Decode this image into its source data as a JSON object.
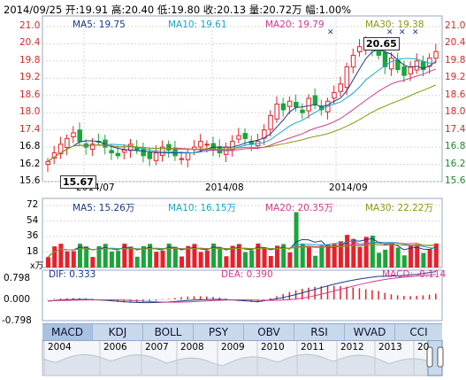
{
  "header": {
    "text": "2014/09/25 开:19.91 高:20.40 低:19.80 收:20.13 量:20.72万 幅:1.00%"
  },
  "price_panel": {
    "ma_labels": [
      {
        "label": "MA5: 19.75",
        "color": "#1a3a8a"
      },
      {
        "label": "MA10: 19.61",
        "color": "#18a6c8"
      },
      {
        "label": "MA20: 19.79",
        "color": "#d13b8c"
      },
      {
        "label": "MA30: 19.38",
        "color": "#8a9a10"
      }
    ],
    "y_ticks": [
      "21.0",
      "20.4",
      "19.8",
      "19.2",
      "18.6",
      "18.0",
      "17.4",
      "16.8",
      "16.2",
      "15.6"
    ],
    "x_ticks": [
      "2014/07",
      "2014/08",
      "2014/09"
    ],
    "high_label": "20.65",
    "low_label": "15.67"
  },
  "volume_panel": {
    "ma_labels": [
      {
        "label": "MA5: 15.26万",
        "color": "#1a3a8a"
      },
      {
        "label": "MA10: 16.15万",
        "color": "#18a6c8"
      },
      {
        "label": "MA20: 20.35万",
        "color": "#d13b8c"
      },
      {
        "label": "MA30: 22.22万",
        "color": "#8a9a10"
      }
    ],
    "y_ticks": [
      "72",
      "54",
      "36",
      "18"
    ],
    "unit": "x万"
  },
  "macd_panel": {
    "labels": [
      {
        "label": "DIF: 0.333",
        "color": "#1a3a8a"
      },
      {
        "label": "DEA: 0.390",
        "color": "#d13b8c"
      },
      {
        "label": "MACD: -0.114",
        "color": "#d13b8c"
      }
    ],
    "y_ticks": [
      "0.798",
      "0.000",
      "-0.798"
    ]
  },
  "tabs": [
    "MACD",
    "KDJ",
    "BOLL",
    "PSY",
    "OBV",
    "RSI",
    "WVAD",
    "CCI"
  ],
  "active_tab": "MACD",
  "navigator": {
    "years": [
      "2004",
      "2006",
      "2007",
      "2008",
      "2009",
      "2010",
      "2011",
      "2012",
      "2013",
      "20"
    ]
  },
  "colors": {
    "up": "#e8202a",
    "down": "#1ca53a",
    "grid": "#d7d7d7",
    "frame": "#9aa7c0"
  }
}
